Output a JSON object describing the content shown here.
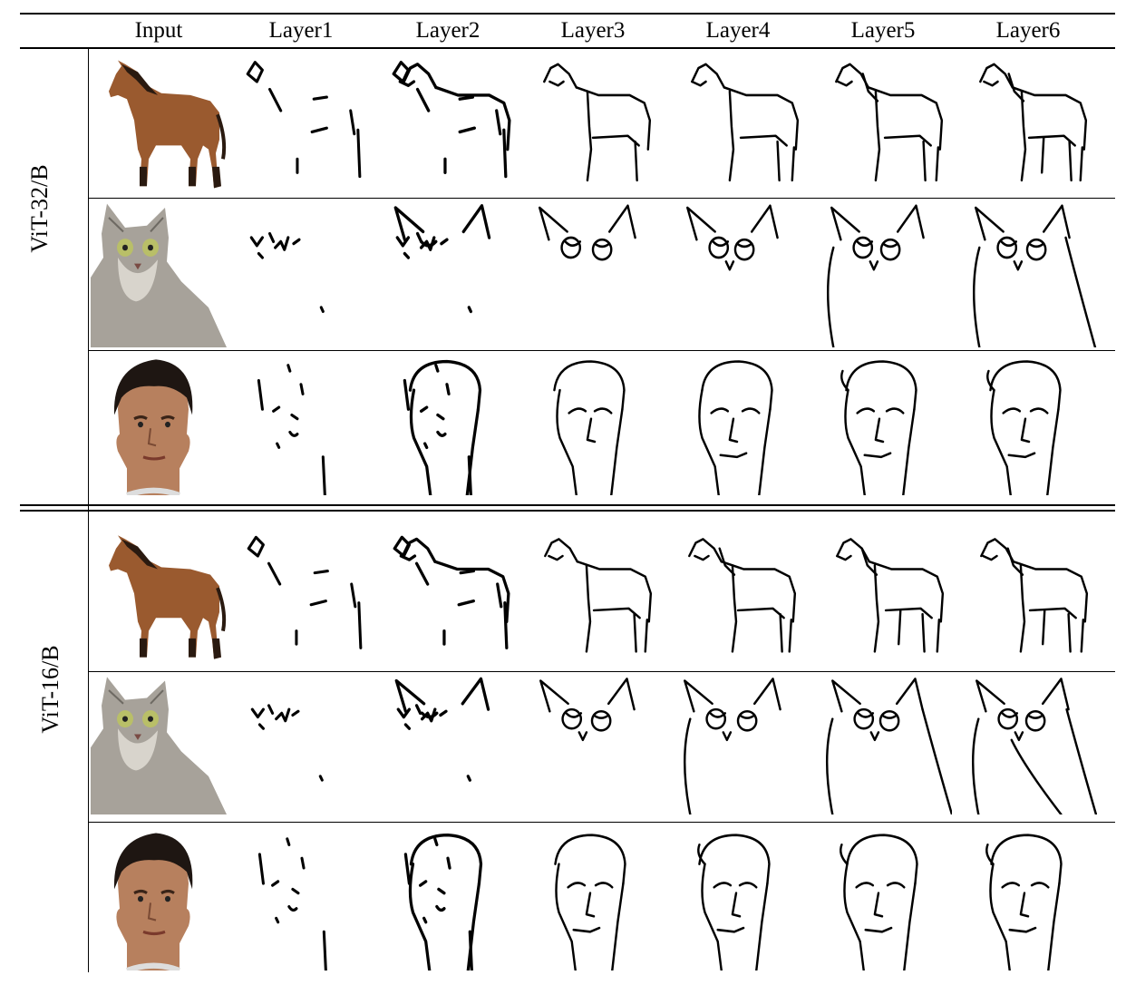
{
  "figure": {
    "columns": [
      "Input",
      "Layer1",
      "Layer2",
      "Layer3",
      "Layer4",
      "Layer5",
      "Layer6"
    ],
    "groups": [
      {
        "label": "ViT-32/B",
        "rows": [
          "horse",
          "cat",
          "face"
        ]
      },
      {
        "label": "ViT-16/B",
        "rows": [
          "horse",
          "cat",
          "face"
        ]
      }
    ]
  },
  "colors": {
    "horse_body": "#9a5a2f",
    "horse_mane": "#2a1a10",
    "cat_fur": "#a7a29a",
    "cat_eye": "#b9bf68",
    "skin": "#b7805e",
    "hair": "#1e1612",
    "ink": "#000000"
  }
}
